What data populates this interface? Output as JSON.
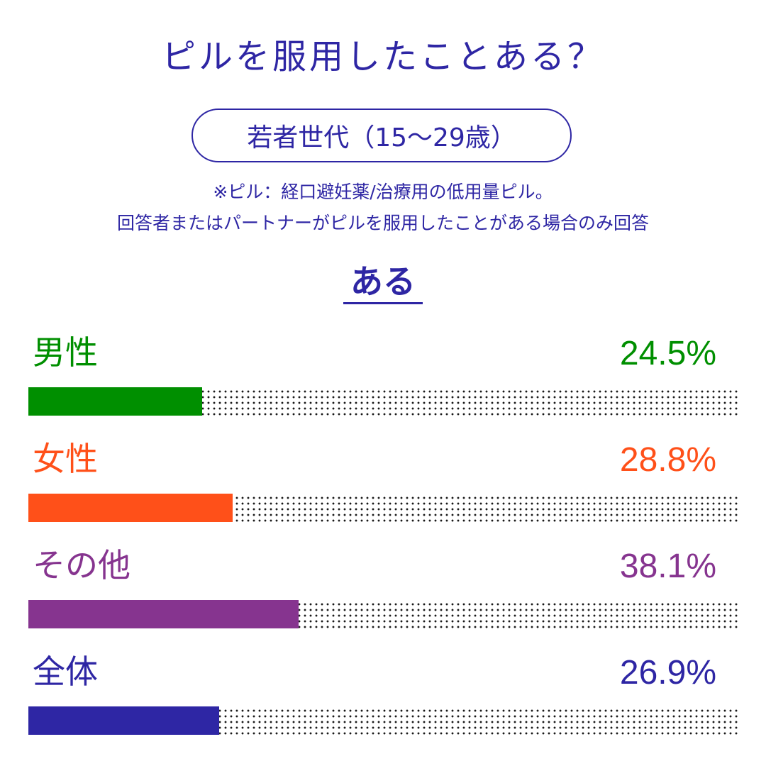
{
  "title": "ピルを服用したことある？",
  "subtitle": "若者世代（15～29歳）",
  "notes": [
    "※ピル：経口避妊薬/治療用の低用量ピル。",
    "回答者またはパートナーがピルを服用したことがある場合のみ回答"
  ],
  "heading": "ある",
  "rows": [
    {
      "label": "男性",
      "value_text": "24.5%",
      "color": "#008f00"
    },
    {
      "label": "女性",
      "value_text": "28.8%",
      "color": "#ff5019"
    },
    {
      "label": "その他",
      "value_text": "38.1%",
      "color": "#86348f"
    },
    {
      "label": "全体",
      "value_text": "26.9%",
      "color": "#2e26a4"
    }
  ],
  "chart_data": {
    "type": "bar",
    "title": "ピルを服用したことある？",
    "subtitle": "若者世代（15～29歳）",
    "series": [
      {
        "name": "ある",
        "values": [
          24.5,
          28.8,
          38.1,
          26.9
        ]
      }
    ],
    "categories": [
      "男性",
      "女性",
      "その他",
      "全体"
    ],
    "ylim": [
      0,
      100
    ],
    "grid": false
  }
}
